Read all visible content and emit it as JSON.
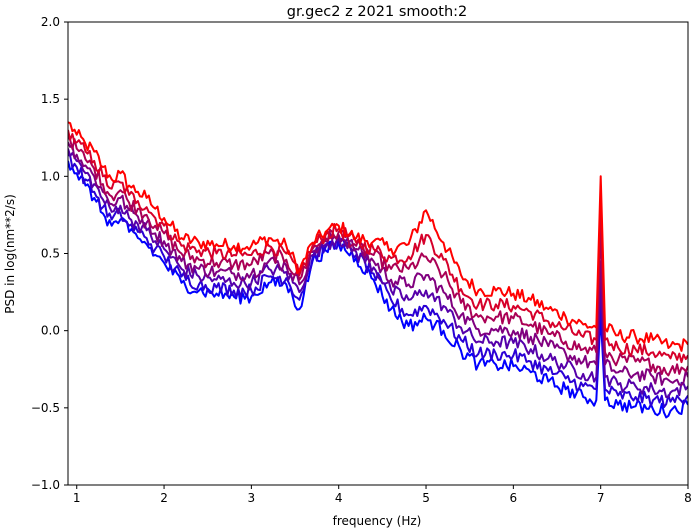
{
  "chart_data": {
    "type": "line",
    "title": "gr.gec2 z 2021 smooth:2",
    "xlabel": "frequency (Hz)",
    "ylabel": "PSD in log(nm**2/s)",
    "xlim": [
      0.9,
      8.0
    ],
    "ylim": [
      -1.0,
      2.0
    ],
    "xticks": [
      "1",
      "2",
      "3",
      "4",
      "5",
      "6",
      "7",
      "8"
    ],
    "yticks": [
      "−1.0",
      "−0.5",
      "0.0",
      "0.5",
      "1.0",
      "1.5",
      "2.0"
    ],
    "grid": false,
    "legend": "none",
    "x": [
      0.9,
      1.0,
      1.1,
      1.2,
      1.3,
      1.4,
      1.5,
      1.6,
      1.7,
      1.8,
      1.9,
      2.0,
      2.2,
      2.4,
      2.6,
      2.8,
      3.0,
      3.2,
      3.4,
      3.55,
      3.7,
      3.85,
      4.0,
      4.2,
      4.4,
      4.6,
      4.8,
      5.0,
      5.2,
      5.4,
      5.6,
      5.8,
      6.0,
      6.2,
      6.4,
      6.6,
      6.8,
      6.95,
      7.0,
      7.05,
      7.2,
      7.4,
      7.6,
      7.8,
      8.0
    ],
    "series": [
      {
        "color": "#ff0000",
        "values": [
          1.35,
          1.27,
          1.21,
          1.16,
          1.06,
          0.98,
          1.02,
          0.94,
          0.9,
          0.86,
          0.79,
          0.73,
          0.6,
          0.57,
          0.56,
          0.55,
          0.55,
          0.6,
          0.55,
          0.39,
          0.57,
          0.64,
          0.68,
          0.6,
          0.58,
          0.53,
          0.56,
          0.78,
          0.57,
          0.36,
          0.26,
          0.26,
          0.24,
          0.2,
          0.14,
          0.09,
          0.04,
          0.02,
          1.0,
          0.02,
          -0.03,
          -0.04,
          -0.06,
          -0.1,
          -0.09
        ]
      },
      {
        "color": "#d6002a",
        "values": [
          1.3,
          1.22,
          1.16,
          1.1,
          1.0,
          0.92,
          0.96,
          0.88,
          0.84,
          0.8,
          0.73,
          0.68,
          0.55,
          0.52,
          0.5,
          0.49,
          0.49,
          0.55,
          0.5,
          0.36,
          0.55,
          0.62,
          0.66,
          0.57,
          0.53,
          0.47,
          0.48,
          0.62,
          0.46,
          0.27,
          0.17,
          0.17,
          0.16,
          0.12,
          0.06,
          0.01,
          -0.04,
          -0.06,
          0.85,
          -0.06,
          -0.11,
          -0.12,
          -0.14,
          -0.18,
          -0.16
        ]
      },
      {
        "color": "#aa0055",
        "values": [
          1.26,
          1.18,
          1.11,
          1.05,
          0.95,
          0.87,
          0.91,
          0.83,
          0.79,
          0.75,
          0.68,
          0.63,
          0.5,
          0.46,
          0.44,
          0.43,
          0.43,
          0.5,
          0.46,
          0.33,
          0.53,
          0.6,
          0.64,
          0.55,
          0.49,
          0.4,
          0.4,
          0.48,
          0.36,
          0.18,
          0.09,
          0.09,
          0.08,
          0.04,
          -0.02,
          -0.07,
          -0.12,
          -0.14,
          0.65,
          -0.14,
          -0.19,
          -0.2,
          -0.22,
          -0.26,
          -0.23
        ]
      },
      {
        "color": "#80007f",
        "values": [
          1.22,
          1.14,
          1.07,
          1.0,
          0.9,
          0.82,
          0.86,
          0.78,
          0.74,
          0.7,
          0.63,
          0.58,
          0.45,
          0.4,
          0.38,
          0.37,
          0.37,
          0.45,
          0.42,
          0.3,
          0.51,
          0.58,
          0.62,
          0.53,
          0.45,
          0.33,
          0.3,
          0.36,
          0.25,
          0.1,
          0.01,
          0.01,
          0.0,
          -0.04,
          -0.1,
          -0.15,
          -0.2,
          -0.22,
          0.45,
          -0.22,
          -0.27,
          -0.28,
          -0.3,
          -0.33,
          -0.3
        ]
      },
      {
        "color": "#5500aa",
        "values": [
          1.18,
          1.1,
          1.02,
          0.95,
          0.85,
          0.77,
          0.81,
          0.73,
          0.69,
          0.65,
          0.58,
          0.53,
          0.4,
          0.35,
          0.33,
          0.31,
          0.31,
          0.4,
          0.38,
          0.25,
          0.49,
          0.56,
          0.6,
          0.51,
          0.41,
          0.26,
          0.2,
          0.26,
          0.16,
          0.02,
          -0.07,
          -0.07,
          -0.08,
          -0.12,
          -0.18,
          -0.23,
          -0.28,
          -0.3,
          0.3,
          -0.3,
          -0.35,
          -0.36,
          -0.38,
          -0.4,
          -0.36
        ]
      },
      {
        "color": "#2a00d5",
        "values": [
          1.14,
          1.06,
          0.98,
          0.9,
          0.8,
          0.72,
          0.76,
          0.68,
          0.64,
          0.6,
          0.53,
          0.48,
          0.35,
          0.3,
          0.28,
          0.26,
          0.26,
          0.35,
          0.34,
          0.2,
          0.47,
          0.54,
          0.58,
          0.49,
          0.37,
          0.2,
          0.1,
          0.16,
          0.07,
          -0.06,
          -0.15,
          -0.15,
          -0.16,
          -0.2,
          -0.26,
          -0.31,
          -0.36,
          -0.38,
          0.2,
          -0.38,
          -0.42,
          -0.43,
          -0.45,
          -0.46,
          -0.42
        ]
      },
      {
        "color": "#0000ff",
        "values": [
          1.1,
          1.02,
          0.94,
          0.86,
          0.76,
          0.68,
          0.72,
          0.64,
          0.6,
          0.56,
          0.49,
          0.44,
          0.31,
          0.26,
          0.24,
          0.22,
          0.22,
          0.31,
          0.3,
          0.14,
          0.45,
          0.52,
          0.56,
          0.47,
          0.33,
          0.14,
          0.03,
          0.08,
          0.0,
          -0.13,
          -0.22,
          -0.22,
          -0.23,
          -0.27,
          -0.33,
          -0.38,
          -0.43,
          -0.45,
          0.1,
          -0.45,
          -0.48,
          -0.49,
          -0.51,
          -0.52,
          -0.48
        ]
      }
    ]
  }
}
